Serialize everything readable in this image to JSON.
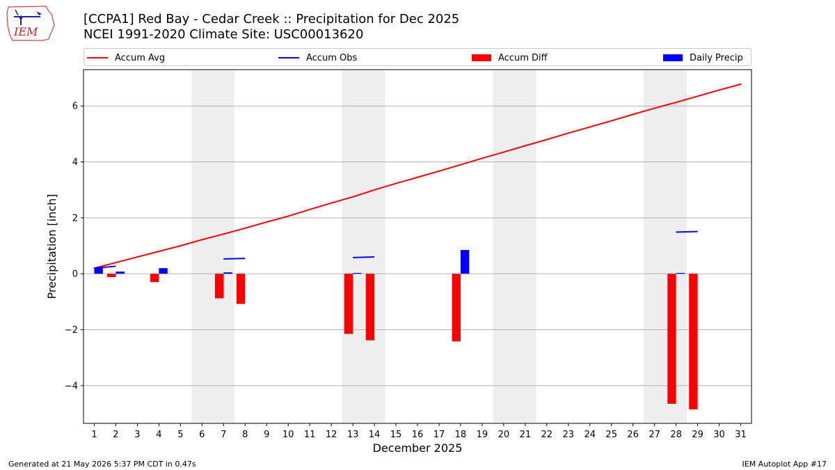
{
  "logo_text": "IEM",
  "header": {
    "title_line1": "[CCPA1] Red Bay - Cedar Creek :: Precipitation for Dec 2025",
    "title_line2": "NCEI 1991-2020 Climate Site: USC00013620"
  },
  "footer": {
    "left": "Generated at 21 May 2026 5:37 PM CDT in 0.47s",
    "right": "IEM Autoplot App #17"
  },
  "colors": {
    "accum_avg": "#ff0000",
    "accum_obs": "#0000ff",
    "accum_diff": "#ff0000",
    "daily_precip": "#0000ff",
    "weekend_shade": "#eeeeee",
    "grid": "#b0b0b0"
  },
  "chart_data": {
    "type": "bar",
    "xlabel": "December 2025",
    "ylabel": "Precipitation [inch]",
    "ylim": [
      -5.35,
      7.3
    ],
    "yticks": [
      -4,
      -2,
      0,
      2,
      4,
      6
    ],
    "ytick_labels": [
      "−4",
      "−2",
      "0",
      "2",
      "4",
      "6"
    ],
    "xlim": [
      0.5,
      31.5
    ],
    "days": [
      1,
      2,
      3,
      4,
      5,
      6,
      7,
      8,
      9,
      10,
      11,
      12,
      13,
      14,
      15,
      16,
      17,
      18,
      19,
      20,
      21,
      22,
      23,
      24,
      25,
      26,
      27,
      28,
      29,
      30,
      31
    ],
    "grid": "horizontal",
    "legend_placement": "top, spanning the plot width",
    "shaded_weekends": [
      [
        6,
        7
      ],
      [
        13,
        14
      ],
      [
        20,
        21
      ],
      [
        27,
        28
      ]
    ],
    "series": [
      {
        "name": "Accum Avg",
        "kind": "line",
        "x": [
          1,
          2,
          3,
          4,
          5,
          6,
          7,
          8,
          9,
          10,
          11,
          12,
          13,
          14,
          15,
          16,
          17,
          18,
          19,
          20,
          21,
          22,
          23,
          24,
          25,
          26,
          27,
          28,
          29,
          30,
          31
        ],
        "values": [
          0.2,
          0.4,
          0.6,
          0.8,
          1.0,
          1.22,
          1.42,
          1.63,
          1.85,
          2.06,
          2.3,
          2.53,
          2.75,
          3.0,
          3.23,
          3.45,
          3.67,
          3.9,
          4.13,
          4.35,
          4.58,
          4.8,
          5.03,
          5.25,
          5.47,
          5.7,
          5.92,
          6.13,
          6.35,
          6.57,
          6.78
        ]
      },
      {
        "name": "Accum Obs",
        "kind": "segments",
        "segments": [
          {
            "x0": 1,
            "x1": 2,
            "y0": 0.2,
            "y1": 0.27
          },
          {
            "x0": 7,
            "x1": 8,
            "y0": 0.53,
            "y1": 0.55
          },
          {
            "x0": 13,
            "x1": 14,
            "y0": 0.58,
            "y1": 0.6
          },
          {
            "x0": 28,
            "x1": 29,
            "y0": 1.49,
            "y1": 1.51
          }
        ]
      },
      {
        "name": "Accum Diff",
        "kind": "bar",
        "offset": -0.2,
        "x": [
          2,
          4,
          7,
          8,
          13,
          14,
          18,
          28,
          29
        ],
        "values": [
          -0.12,
          -0.3,
          -0.88,
          -1.08,
          -2.15,
          -2.38,
          -2.42,
          -4.65,
          -4.85
        ]
      },
      {
        "name": "Daily Precip",
        "kind": "bar",
        "offset": 0.2,
        "x": [
          1,
          2,
          4,
          7,
          13,
          18,
          28
        ],
        "values": [
          0.2,
          0.08,
          0.2,
          0.05,
          0.03,
          0.85,
          0.03
        ]
      }
    ]
  }
}
